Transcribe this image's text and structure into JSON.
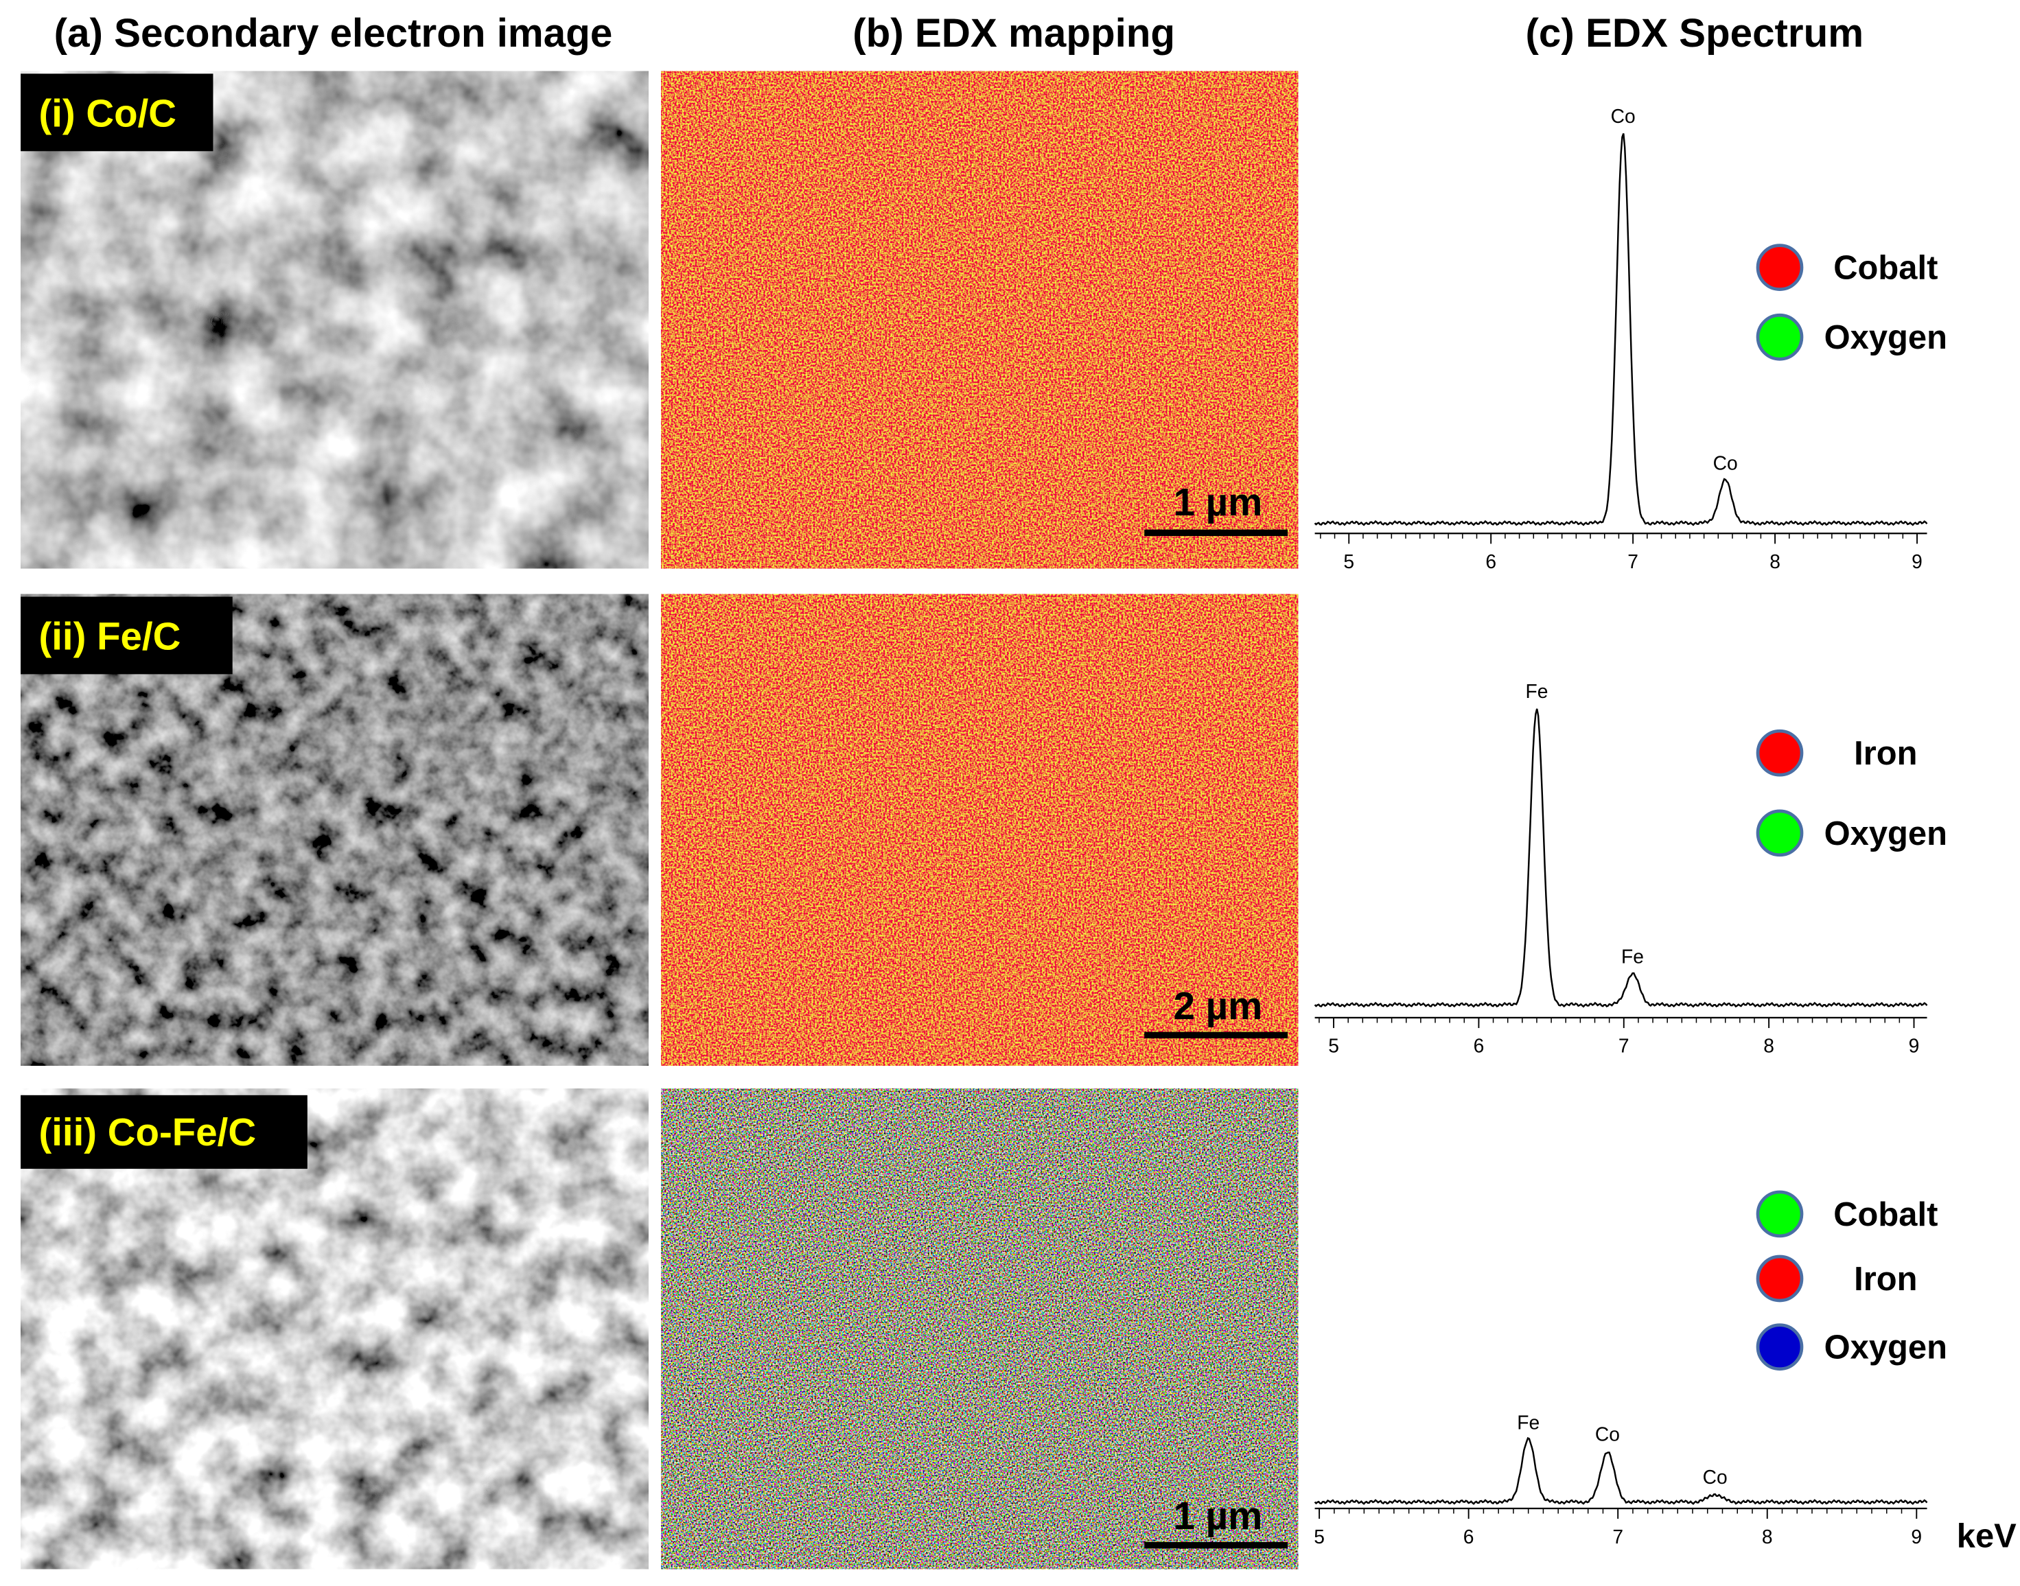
{
  "headers": [
    "(a) Secondary electron image",
    "(b) EDX mapping",
    "(c) EDX Spectrum"
  ],
  "x_unit": "keV",
  "rows": [
    {
      "label": "(i) Co/C",
      "scale_bar": "1 µm",
      "legend": [
        {
          "name": "Cobalt",
          "color": "#ff0000"
        },
        {
          "name": "Oxygen",
          "color": "#00ff00"
        }
      ],
      "spectrum": {
        "type": "line",
        "xlim": [
          4.76,
          9.07
        ],
        "xticks": [
          5,
          6,
          7,
          8,
          9
        ],
        "peaks": [
          {
            "label": "Co",
            "x": 6.93,
            "height": 100
          },
          {
            "label": "Co",
            "x": 7.65,
            "height": 11
          }
        ]
      }
    },
    {
      "label": "(ii) Fe/C",
      "scale_bar": "2 µm",
      "legend": [
        {
          "name": "Iron",
          "color": "#ff0000"
        },
        {
          "name": "Oxygen",
          "color": "#00ff00"
        }
      ],
      "spectrum": {
        "type": "line",
        "xlim": [
          4.87,
          9.09
        ],
        "xticks": [
          5,
          6,
          7,
          8,
          9
        ],
        "peaks": [
          {
            "label": "Fe",
            "x": 6.4,
            "height": 76
          },
          {
            "label": "Fe",
            "x": 7.06,
            "height": 8
          }
        ]
      }
    },
    {
      "label": "(iii) Co-Fe/C",
      "scale_bar": "1 µm",
      "legend": [
        {
          "name": "Cobalt",
          "color": "#00ff00"
        },
        {
          "name": "Iron",
          "color": "#ff0000"
        },
        {
          "name": "Oxygen",
          "color": "#0000cc"
        }
      ],
      "spectrum": {
        "type": "line",
        "xlim": [
          4.97,
          9.07
        ],
        "xticks": [
          5,
          6,
          7,
          8,
          9
        ],
        "peaks": [
          {
            "label": "Fe",
            "x": 6.4,
            "height": 16
          },
          {
            "label": "Co",
            "x": 6.93,
            "height": 13
          },
          {
            "label": "Co",
            "x": 7.65,
            "height": 2
          }
        ]
      }
    }
  ]
}
